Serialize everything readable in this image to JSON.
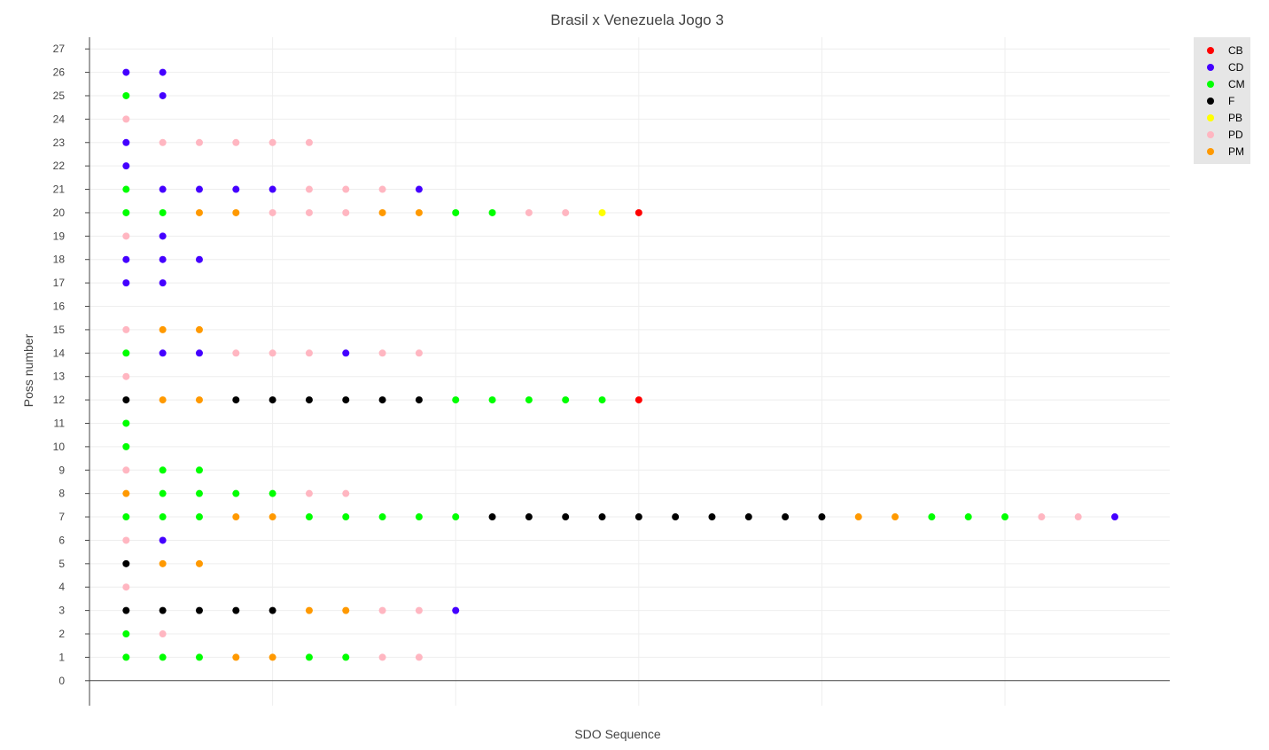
{
  "chart_data": {
    "type": "scatter",
    "title": "Brasil x Venezuela Jogo 3",
    "xlabel": "SDO Sequence",
    "ylabel": "Poss number",
    "xlim": [
      0,
      29.5
    ],
    "ylim": [
      0,
      27
    ],
    "y_ticks": [
      0,
      1,
      2,
      3,
      4,
      5,
      6,
      7,
      8,
      9,
      10,
      11,
      12,
      13,
      14,
      15,
      16,
      17,
      18,
      19,
      20,
      21,
      22,
      23,
      24,
      25,
      26,
      27
    ],
    "x_gridlines": [
      5,
      10,
      15,
      20,
      25
    ],
    "x_tick_labels_visible": false,
    "grid": true,
    "legend_position": "top-right",
    "categories": [
      "CB",
      "CD",
      "CM",
      "F",
      "PB",
      "PD",
      "PM"
    ],
    "colors": {
      "CB": "#ff0000",
      "CD": "#4400ff",
      "CM": "#00ff00",
      "F": "#000000",
      "PB": "#ffff00",
      "PD": "#ffb6c1",
      "PM": "#ff9900"
    },
    "rows": [
      {
        "poss": 1,
        "seq": [
          "CM",
          "CM",
          "CM",
          "PM",
          "PM",
          "CM",
          "CM",
          "PD",
          "PD"
        ]
      },
      {
        "poss": 2,
        "seq": [
          "CM",
          "PD"
        ]
      },
      {
        "poss": 3,
        "seq": [
          "F",
          "F",
          "F",
          "F",
          "F",
          "PM",
          "PM",
          "PD",
          "PD",
          "CD"
        ]
      },
      {
        "poss": 4,
        "seq": [
          "PD"
        ]
      },
      {
        "poss": 5,
        "seq": [
          "F",
          "PM",
          "PM"
        ]
      },
      {
        "poss": 6,
        "seq": [
          "PD",
          "CD"
        ]
      },
      {
        "poss": 7,
        "seq": [
          "CM",
          "CM",
          "CM",
          "PM",
          "PM",
          "CM",
          "CM",
          "CM",
          "CM",
          "CM",
          "F",
          "F",
          "F",
          "F",
          "F",
          "F",
          "F",
          "F",
          "F",
          "F",
          "PM",
          "PM",
          "CM",
          "CM",
          "CM",
          "PD",
          "PD",
          "CD"
        ]
      },
      {
        "poss": 8,
        "seq": [
          "PM",
          "CM",
          "CM",
          "CM",
          "CM",
          "PD",
          "PD"
        ]
      },
      {
        "poss": 9,
        "seq": [
          "PD",
          "CM",
          "CM"
        ]
      },
      {
        "poss": 10,
        "seq": [
          "CM"
        ]
      },
      {
        "poss": 11,
        "seq": [
          "CM"
        ]
      },
      {
        "poss": 12,
        "seq": [
          "F",
          "PM",
          "PM",
          "F",
          "F",
          "F",
          "F",
          "F",
          "F",
          "CM",
          "CM",
          "CM",
          "CM",
          "CM",
          "CB"
        ]
      },
      {
        "poss": 13,
        "seq": [
          "PD"
        ]
      },
      {
        "poss": 14,
        "seq": [
          "CM",
          "CD",
          "CD",
          "PD",
          "PD",
          "PD",
          "CD",
          "PD",
          "PD"
        ]
      },
      {
        "poss": 15,
        "seq": [
          "PD",
          "PM",
          "PM"
        ]
      },
      {
        "poss": 17,
        "seq": [
          "CD",
          "CD"
        ]
      },
      {
        "poss": 18,
        "seq": [
          "CD",
          "CD",
          "CD"
        ]
      },
      {
        "poss": 19,
        "seq": [
          "PD",
          "CD"
        ]
      },
      {
        "poss": 20,
        "seq": [
          "CM",
          "CM",
          "PM",
          "PM",
          "PD",
          "PD",
          "PD",
          "PM",
          "PM",
          "CM",
          "CM",
          "PD",
          "PD",
          "PB",
          "CB"
        ]
      },
      {
        "poss": 21,
        "seq": [
          "CM",
          "CD",
          "CD",
          "CD",
          "CD",
          "PD",
          "PD",
          "PD",
          "CD"
        ]
      },
      {
        "poss": 22,
        "seq": [
          "CD"
        ]
      },
      {
        "poss": 23,
        "seq": [
          "CD",
          "PD",
          "PD",
          "PD",
          "PD",
          "PD"
        ]
      },
      {
        "poss": 24,
        "seq": [
          "PD"
        ]
      },
      {
        "poss": 25,
        "seq": [
          "CM",
          "CD"
        ]
      },
      {
        "poss": 26,
        "seq": [
          "CD",
          "CD"
        ]
      }
    ]
  }
}
